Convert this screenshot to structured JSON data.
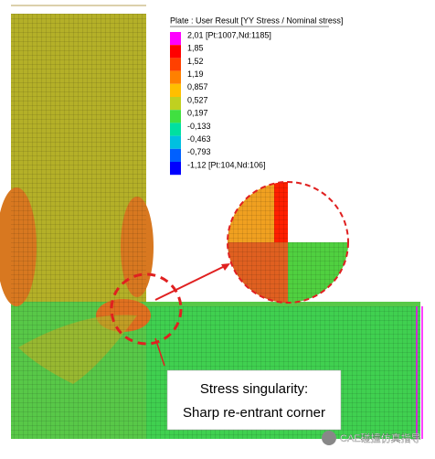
{
  "legend": {
    "title": "Plate : User Result [YY Stress / Nominal stress]",
    "entries": [
      {
        "label": "2,01 [Pt:1007,Nd:1185]",
        "color": "#ff00ff"
      },
      {
        "label": "1,85",
        "color": "#ff0000"
      },
      {
        "label": "1,52",
        "color": "#ff4000"
      },
      {
        "label": "1,19",
        "color": "#ff8000"
      },
      {
        "label": "0,857",
        "color": "#ffbf00"
      },
      {
        "label": "0,527",
        "color": "#c0d020"
      },
      {
        "label": "0,197",
        "color": "#40e040"
      },
      {
        "label": "-0,133",
        "color": "#00e0a0"
      },
      {
        "label": "-0,463",
        "color": "#00c0e0"
      },
      {
        "label": "-0,793",
        "color": "#0060ff"
      },
      {
        "label": "-1,12 [Pt:104,Nd:106]",
        "color": "#0000ff"
      }
    ]
  },
  "callout": {
    "line1": "Stress singularity:",
    "line2": "Sharp re-entrant corner"
  },
  "watermark": "CAE碰撞仿真指导"
}
